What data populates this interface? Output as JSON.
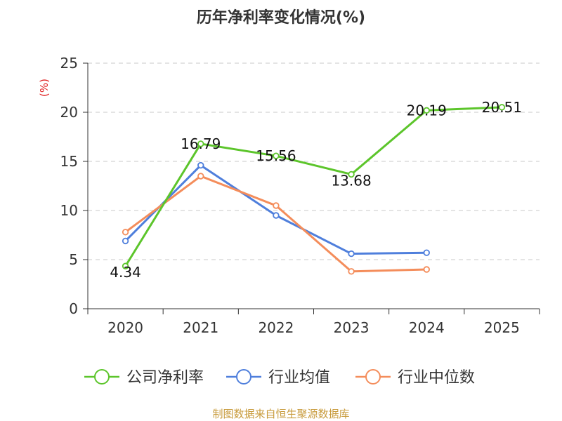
{
  "chart_data": {
    "type": "line",
    "title": "历年净利率变化情况(%)",
    "ylabel": "(%)",
    "xlabel": "",
    "categories": [
      "2020",
      "2021",
      "2022",
      "2023",
      "2024",
      "2025"
    ],
    "ylim": [
      0,
      25
    ],
    "yticks": [
      0,
      5,
      10,
      15,
      20,
      25
    ],
    "grid": true,
    "legend_position": "bottom",
    "series": [
      {
        "name": "公司净利率",
        "color": "#5cc52b",
        "values": [
          4.34,
          16.79,
          15.56,
          13.68,
          20.19,
          20.51
        ],
        "labels": [
          "4.34",
          "16.79",
          "15.56",
          "13.68",
          "20.19",
          "20.51"
        ]
      },
      {
        "name": "行业均值",
        "color": "#4f7fdc",
        "values": [
          6.9,
          14.6,
          9.5,
          5.6,
          5.7,
          null
        ]
      },
      {
        "name": "行业中位数",
        "color": "#f48d5b",
        "values": [
          7.8,
          13.5,
          10.5,
          3.8,
          4.0,
          null
        ]
      }
    ],
    "ylabel_color": "#e02020"
  },
  "source": {
    "text": "制图数据来自恒生聚源数据库",
    "color": "#c89b3c"
  }
}
